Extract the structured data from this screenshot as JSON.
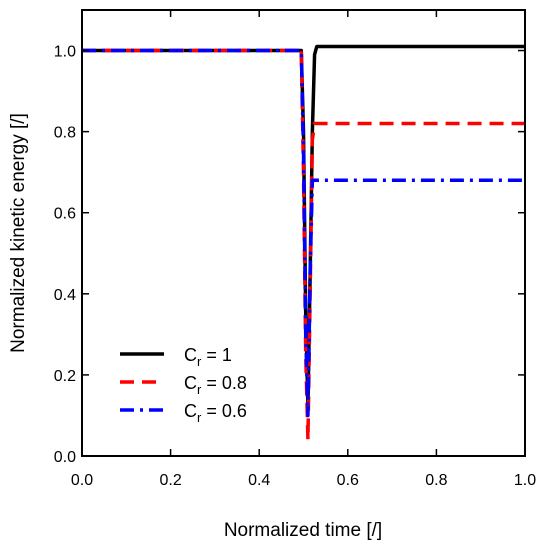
{
  "chart_data": {
    "type": "line",
    "title": "",
    "xlabel": "Normalized time [/]",
    "ylabel": "Normalized kinetic energy [/]",
    "xlim": [
      0,
      1.0
    ],
    "ylim": [
      0,
      1.1
    ],
    "xticks": [
      0.0,
      0.2,
      0.4,
      0.6,
      0.8,
      1.0
    ],
    "xtick_labels": [
      "0.0",
      "0.2",
      "0.4",
      "0.6",
      "0.8",
      "1.0"
    ],
    "yticks": [
      0.0,
      0.2,
      0.4,
      0.6,
      0.8,
      1.0
    ],
    "ytick_labels": [
      "0.0",
      "0.2",
      "0.4",
      "0.6",
      "0.8",
      "1.0"
    ],
    "grid": false,
    "legend_position": "bottom-left",
    "series": [
      {
        "name": "C_r = 1",
        "name_base": "C",
        "name_sub": "r",
        "name_rest": " = 1",
        "color": "#000000",
        "dash": "solid",
        "x": [
          0.0,
          0.495,
          0.5,
          0.505,
          0.51,
          0.515,
          0.52,
          0.525,
          0.53,
          0.55,
          1.0
        ],
        "y": [
          1.0,
          1.0,
          0.8,
          0.35,
          0.12,
          0.45,
          0.8,
          0.99,
          1.01,
          1.01,
          1.01
        ]
      },
      {
        "name": "C_r = 0.8",
        "name_base": "C",
        "name_sub": "r",
        "name_rest": " = 0.8",
        "color": "#ff0000",
        "dash": "dashed",
        "x": [
          0.0,
          0.495,
          0.5,
          0.505,
          0.51,
          0.515,
          0.52,
          0.525,
          0.53,
          1.0
        ],
        "y": [
          1.0,
          1.0,
          0.7,
          0.25,
          0.04,
          0.4,
          0.78,
          0.82,
          0.82,
          0.82
        ]
      },
      {
        "name": "C_r = 0.6",
        "name_base": "C",
        "name_sub": "r",
        "name_rest": " = 0.6",
        "color": "#0000ff",
        "dash": "dashdot",
        "x": [
          0.0,
          0.495,
          0.5,
          0.505,
          0.51,
          0.515,
          0.52,
          0.525,
          1.0
        ],
        "y": [
          1.0,
          1.0,
          0.75,
          0.3,
          0.1,
          0.45,
          0.68,
          0.68,
          0.68
        ]
      }
    ]
  }
}
